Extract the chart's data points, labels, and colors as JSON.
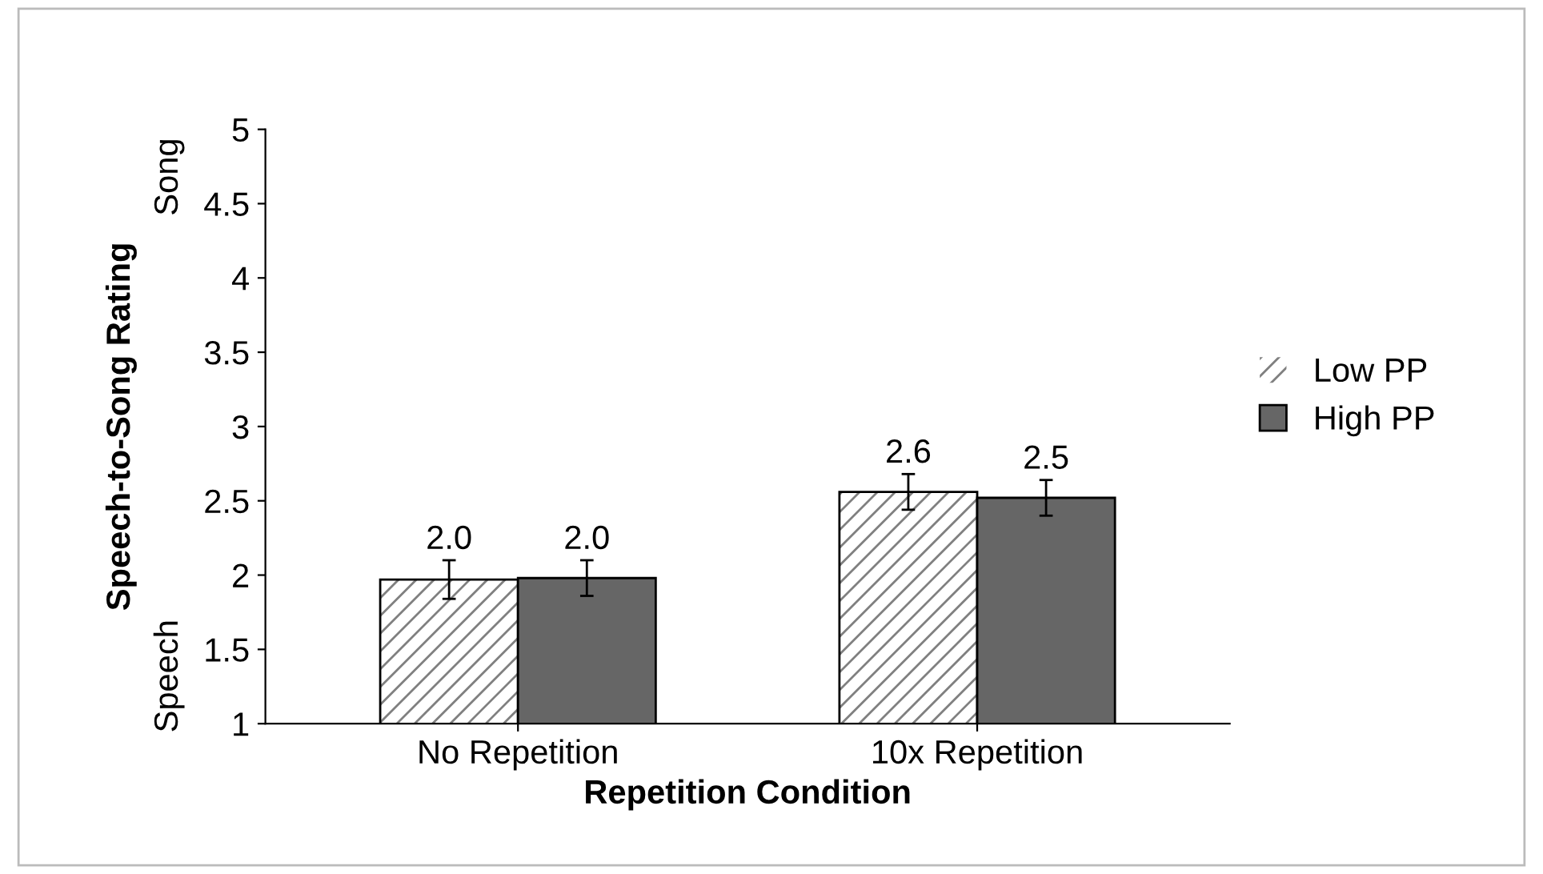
{
  "chart_data": {
    "type": "bar",
    "xlabel": "Repetition Condition",
    "ylabel": "Speech-to-Song Rating",
    "categories": [
      "No Repetition",
      "10x Repetition"
    ],
    "series": [
      {
        "name": "Low PP",
        "color": "#808080",
        "values": [
          1.97,
          2.56
        ],
        "errors": [
          0.13,
          0.12
        ],
        "value_labels": [
          "2.0",
          "2.6"
        ]
      },
      {
        "name": "High PP",
        "color": "#666666",
        "values": [
          1.98,
          2.52
        ],
        "errors": [
          0.12,
          0.12
        ],
        "value_labels": [
          "2.0",
          "2.5"
        ]
      }
    ],
    "ylim": [
      1,
      5
    ],
    "yticks": [
      1,
      1.5,
      2,
      2.5,
      3,
      3.5,
      4,
      4.5,
      5
    ],
    "annotations": [
      "Song",
      "Speech"
    ],
    "legend": "right",
    "grid": false
  }
}
